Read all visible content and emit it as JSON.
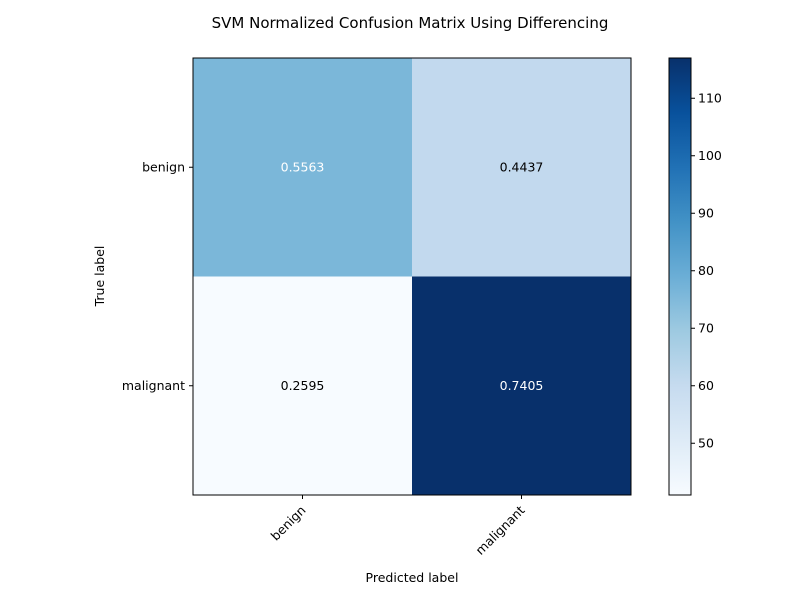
{
  "chart_data": {
    "type": "heatmap",
    "title": "SVM Normalized Confusion Matrix Using Differencing",
    "xlabel": "Predicted label",
    "ylabel": "True label",
    "x_categories": [
      "benign",
      "malignant"
    ],
    "y_categories": [
      "benign",
      "malignant"
    ],
    "cell_labels": [
      [
        "0.5563",
        "0.4437"
      ],
      [
        "0.2595",
        "0.7405"
      ]
    ],
    "color_values": [
      [
        76,
        61
      ],
      [
        41,
        117
      ]
    ],
    "colorbar": {
      "range": [
        41,
        117
      ],
      "ticks": [
        50,
        60,
        70,
        80,
        90,
        100,
        110
      ],
      "colormap": "Blues"
    },
    "colors": {
      "text_light": "#ffffff",
      "text_dark": "#000000",
      "frame": "#000000"
    }
  }
}
